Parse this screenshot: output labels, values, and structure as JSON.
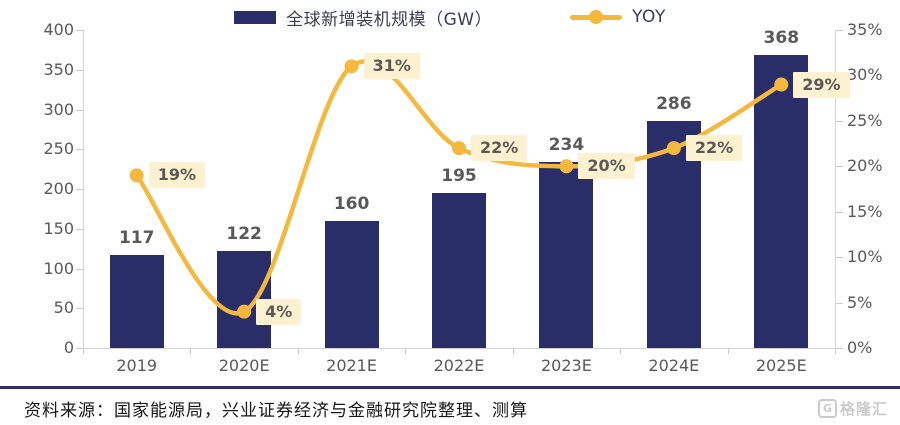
{
  "chart_data": {
    "type": "bar",
    "combo": "bar + line (dual axis)",
    "title": "",
    "categories": [
      "2019",
      "2020E",
      "2021E",
      "2022E",
      "2023E",
      "2024E",
      "2025E"
    ],
    "series": [
      {
        "name": "全球新增装机规模（GW）",
        "type": "bar",
        "axis": "left",
        "values": [
          117,
          122,
          160,
          195,
          234,
          286,
          368
        ]
      },
      {
        "name": "YOY",
        "type": "line",
        "axis": "right",
        "values": [
          19,
          4,
          31,
          22,
          20,
          22,
          29
        ],
        "point_labels": [
          "19%",
          "4%",
          "31%",
          "22%",
          "20%",
          "22%",
          "29%"
        ]
      }
    ],
    "left_axis": {
      "min": 0,
      "max": 400,
      "tick_values": [
        0,
        50,
        100,
        150,
        200,
        250,
        300,
        350,
        400
      ],
      "ticks": [
        "0",
        "50",
        "100",
        "150",
        "200",
        "250",
        "300",
        "350",
        "400"
      ]
    },
    "right_axis": {
      "min": 0,
      "max": 35,
      "tick_values": [
        0,
        5,
        10,
        15,
        20,
        25,
        30,
        35
      ],
      "ticks": [
        "0%",
        "5%",
        "10%",
        "15%",
        "20%",
        "25%",
        "30%",
        "35%"
      ]
    },
    "grid": false,
    "legend_position": "top"
  },
  "legend": {
    "bar_label": "全球新增装机规模（GW）",
    "line_label": "YOY"
  },
  "footer": {
    "source": "资料来源：国家能源局，兴业证券经济与金融研究院整理、测算",
    "logo_text": "格隆汇",
    "logo_letter": "G"
  },
  "colors": {
    "bar": "#2a2e68",
    "line": "#f5b83e",
    "yoy_label_bg": "#fdf1cf",
    "yoy_label_text": "#595959",
    "value_label_text": "#595959",
    "axis_line": "#d4d4d4",
    "separator": "#2d2d6b"
  }
}
